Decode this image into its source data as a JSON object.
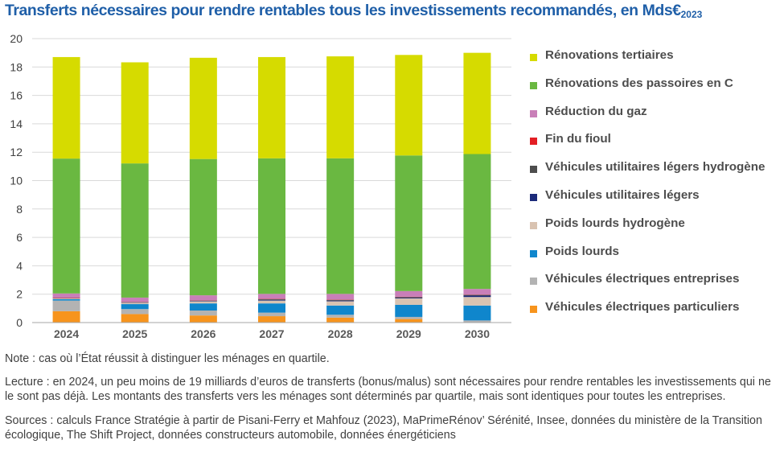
{
  "title": "Transferts nécessaires pour rendre rentables tous les investissements recommandés, en Mds€",
  "title_sub": "2023",
  "chart_data": {
    "type": "bar",
    "stacked": true,
    "categories": [
      "2024",
      "2025",
      "2026",
      "2027",
      "2028",
      "2029",
      "2030"
    ],
    "ylim": [
      0,
      20
    ],
    "yticks": [
      "0",
      "2",
      "4",
      "6",
      "8",
      "10",
      "12",
      "14",
      "16",
      "18",
      "20"
    ],
    "grid": true,
    "legend_position": "right",
    "series": [
      {
        "name": "Véhicules électriques particuliers",
        "color": "#f7941d",
        "values": [
          0.8,
          0.6,
          0.5,
          0.45,
          0.35,
          0.25,
          0.0
        ]
      },
      {
        "name": "Véhicules électriques entreprises",
        "color": "#b3b3b3",
        "values": [
          0.75,
          0.35,
          0.35,
          0.25,
          0.2,
          0.15,
          0.15
        ]
      },
      {
        "name": "Poids lourds",
        "color": "#0f86cc",
        "values": [
          0.1,
          0.35,
          0.5,
          0.65,
          0.65,
          0.85,
          1.05
        ]
      },
      {
        "name": "Poids lourds hydrogène",
        "color": "#d9c3b1",
        "values": [
          0.05,
          0.1,
          0.15,
          0.2,
          0.3,
          0.45,
          0.6
        ]
      },
      {
        "name": "Véhicules utilitaires légers",
        "color": "#1b2a7a",
        "values": [
          0.02,
          0.02,
          0.03,
          0.05,
          0.05,
          0.05,
          0.1
        ]
      },
      {
        "name": "Véhicules utilitaires légers hydrogène",
        "color": "#4d4d4d",
        "values": [
          0.0,
          0.02,
          0.02,
          0.05,
          0.05,
          0.05,
          0.05
        ]
      },
      {
        "name": "Fin du fioul",
        "color": "#e31e24",
        "values": [
          0.03,
          0.02,
          0.02,
          0.02,
          0.02,
          0.02,
          0.02
        ]
      },
      {
        "name": "Réduction du gaz",
        "color": "#c97fb8",
        "values": [
          0.3,
          0.3,
          0.35,
          0.35,
          0.4,
          0.4,
          0.4
        ]
      },
      {
        "name": "Rénovations des passoires en C",
        "color": "#6ab841",
        "values": [
          9.5,
          9.45,
          9.6,
          9.55,
          9.55,
          9.55,
          9.5
        ]
      },
      {
        "name": "Rénovations tertiaires",
        "color": "#d6db00",
        "values": [
          7.15,
          7.12,
          7.13,
          7.13,
          7.18,
          7.08,
          7.13
        ]
      }
    ]
  },
  "notes": {
    "note": "Note : cas où l’État réussit à distinguer les ménages en quartile.",
    "lecture": "Lecture : en 2024, un peu moins de 19 milliards d’euros de transferts (bonus/malus) sont nécessaires pour rendre rentables les investissements qui ne le sont pas déjà. Les montants des transferts vers les ménages sont déterminés par quartile, mais sont identiques pour toutes les entreprises.",
    "sources": "Sources : calculs France Stratégie à partir de Pisani-Ferry et Mahfouz (2023), MaPrimeRénov’ Sérénité, Insee, données du ministère de la Transition écologique, The Shift Project, données constructeurs automobile, données énergéticiens"
  }
}
